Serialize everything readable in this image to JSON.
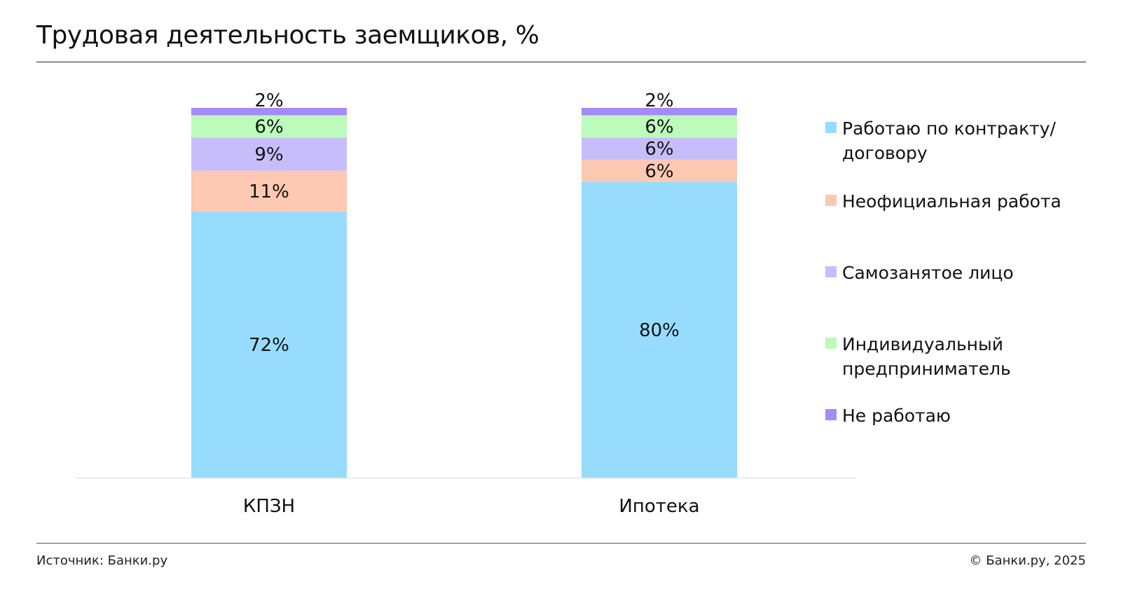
{
  "header": {
    "title": "Трудовая деятельность заемщиков, %"
  },
  "footer": {
    "source": "Источник: Банки.ру",
    "copyright": "© Банки.ру, 2025"
  },
  "colors": {
    "contract": "#97dcfd",
    "unofficial": "#fdc9b2",
    "selfemployed": "#c8bdfb",
    "entrepreneur": "#bdfbbc",
    "unemployed": "#a58bfa",
    "axis": "#e6e6e6"
  },
  "chart_data": {
    "type": "bar",
    "stacked": true,
    "title": "Трудовая деятельность заемщиков, %",
    "xlabel": "",
    "ylabel": "",
    "ylim": [
      0,
      100
    ],
    "grid": false,
    "legend_position": "right",
    "categories": [
      "КПЗН",
      "Ипотека"
    ],
    "series": [
      {
        "name": "Работаю по контракту/договору",
        "key": "contract",
        "values": [
          72,
          80
        ],
        "labels": [
          "72%",
          "80%"
        ]
      },
      {
        "name": "Неофициальная работа",
        "key": "unofficial",
        "values": [
          11,
          6
        ],
        "labels": [
          "11%",
          "6%"
        ]
      },
      {
        "name": "Самозанятое лицо",
        "key": "selfemployed",
        "values": [
          9,
          6
        ],
        "labels": [
          "9%",
          "6%"
        ]
      },
      {
        "name": "Индивидуальный предприниматель",
        "key": "entrepreneur",
        "values": [
          6,
          6
        ],
        "labels": [
          "6%",
          "6%"
        ]
      },
      {
        "name": "Не работаю",
        "key": "unemployed",
        "values": [
          2,
          2
        ],
        "labels": [
          "2%",
          "2%"
        ]
      }
    ]
  },
  "legend": {
    "items": [
      {
        "key": "contract",
        "label": "Работаю по контракту/договору"
      },
      {
        "key": "unofficial",
        "label": "Неофициальная работа"
      },
      {
        "key": "selfemployed",
        "label": "Самозанятое лицо"
      },
      {
        "key": "entrepreneur",
        "label": "Индивидуальный предприниматель"
      },
      {
        "key": "unemployed",
        "label": "Не работаю"
      }
    ]
  }
}
